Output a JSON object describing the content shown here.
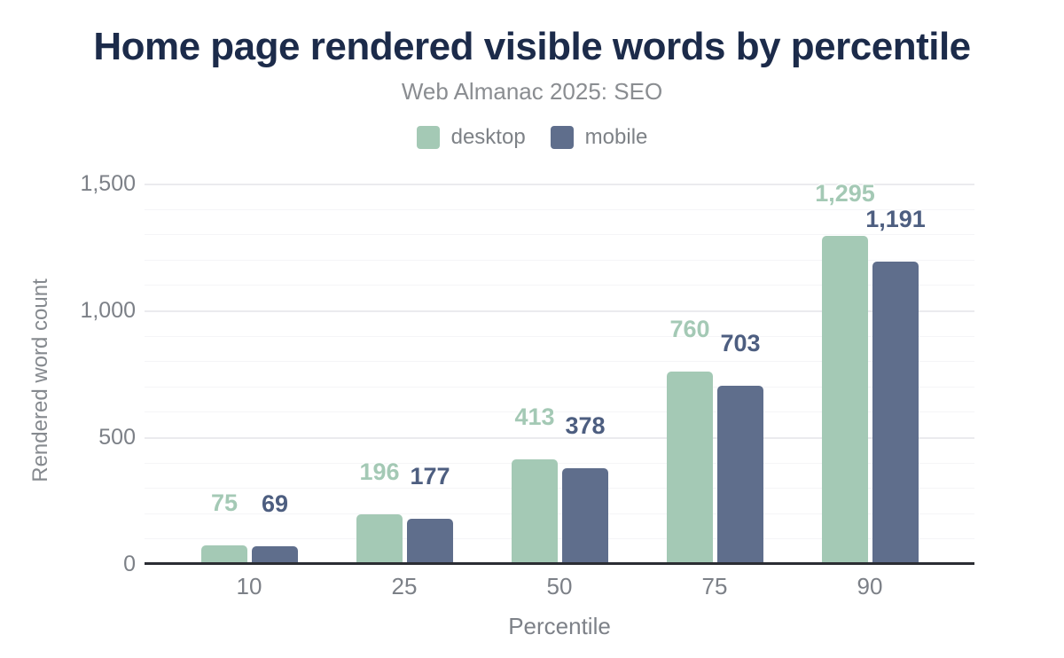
{
  "page": {
    "title": "Home page rendered visible words by percentile",
    "subtitle": "Web Almanac 2025: SEO"
  },
  "colors": {
    "title_text": "#1c2b4a",
    "axis_text": "#7c8087",
    "baseline": "#2b2d33",
    "desktop": "#a4c9b5",
    "mobile": "#5f6e8c",
    "mobile_label": "#4d5e80"
  },
  "chart_data": {
    "type": "bar",
    "title": "Home page rendered visible words by percentile",
    "subtitle": "Web Almanac 2025: SEO",
    "xlabel": "Percentile",
    "ylabel": "Rendered word count",
    "categories": [
      "10",
      "25",
      "50",
      "75",
      "90"
    ],
    "series": [
      {
        "name": "desktop",
        "values": [
          75,
          196,
          413,
          760,
          1295
        ],
        "labels": [
          "75",
          "196",
          "413",
          "760",
          "1,295"
        ],
        "color": "#a4c9b5",
        "label_color": "#a4c9b5"
      },
      {
        "name": "mobile",
        "values": [
          69,
          177,
          378,
          703,
          1191
        ],
        "labels": [
          "69",
          "177",
          "378",
          "703",
          "1,191"
        ],
        "color": "#5f6e8c",
        "label_color": "#4d5e80"
      }
    ],
    "ylim": [
      0,
      1500
    ],
    "yticks": [
      {
        "value": 0,
        "label": "0"
      },
      {
        "value": 500,
        "label": "500"
      },
      {
        "value": 1000,
        "label": "1,000"
      },
      {
        "value": 1500,
        "label": "1,500"
      }
    ],
    "grid": {
      "minor_step": 100,
      "major_step": 500
    },
    "legend_position": "top",
    "legend": [
      "desktop",
      "mobile"
    ]
  }
}
